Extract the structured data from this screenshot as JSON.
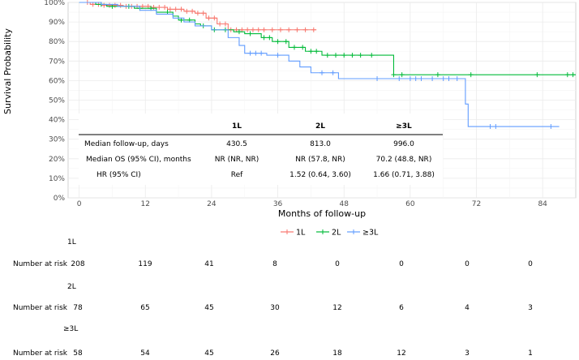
{
  "chart_data": {
    "type": "line",
    "subtype": "kaplan-meier",
    "xlabel": "Months of follow-up",
    "ylabel": "Survival Probability",
    "xlim": [
      -2,
      90
    ],
    "ylim": [
      0,
      100
    ],
    "xticks": [
      0,
      12,
      24,
      36,
      48,
      60,
      72,
      84
    ],
    "yticks": [
      0,
      10,
      20,
      30,
      40,
      50,
      60,
      70,
      80,
      90,
      100
    ],
    "ytick_labels": [
      "0%",
      "10%",
      "20%",
      "30%",
      "40%",
      "50%",
      "60%",
      "70%",
      "80%",
      "90%",
      "100%"
    ],
    "grid": true,
    "legend": {
      "position": "bottom",
      "entries": [
        {
          "label": "1L",
          "color": "#F8766D"
        },
        {
          "label": "2L",
          "color": "#00BA38"
        },
        {
          "label": "≥3L",
          "color": "#619CFF"
        }
      ]
    },
    "series": [
      {
        "name": "1L",
        "color": "#F8766D",
        "steps": [
          [
            0,
            100
          ],
          [
            2,
            99
          ],
          [
            4,
            98.5
          ],
          [
            8,
            98
          ],
          [
            13,
            97.5
          ],
          [
            16,
            96.5
          ],
          [
            19,
            95.5
          ],
          [
            21,
            94.5
          ],
          [
            23,
            92
          ],
          [
            25,
            89
          ],
          [
            27,
            86
          ]
        ],
        "censor": [
          1.5,
          2.5,
          3.5,
          4.5,
          5.5,
          6.5,
          7.5,
          8.5,
          9.5,
          10.5,
          11.5,
          12.5,
          13.5,
          14.5,
          15.5,
          16.5,
          17.5,
          18.5,
          19.5,
          20.5,
          21.5,
          22.5,
          23.5,
          24.5,
          25.5,
          26.5,
          27.5,
          28.5,
          29.5,
          30.5,
          31.5,
          32.5,
          33.5,
          35,
          36.5,
          38,
          39.5,
          41,
          42.5
        ],
        "end": 43
      },
      {
        "name": "2L",
        "color": "#00BA38",
        "steps": [
          [
            0,
            100
          ],
          [
            3,
            99
          ],
          [
            5,
            98
          ],
          [
            10,
            97
          ],
          [
            14,
            95
          ],
          [
            17,
            93
          ],
          [
            18,
            91
          ],
          [
            21,
            89
          ],
          [
            22,
            88
          ],
          [
            24,
            86
          ],
          [
            28,
            85
          ],
          [
            30,
            84
          ],
          [
            33,
            82
          ],
          [
            35,
            80
          ],
          [
            38,
            77
          ],
          [
            41,
            75
          ],
          [
            44,
            73
          ],
          [
            57,
            63
          ]
        ],
        "censor": [
          4,
          6,
          9,
          11,
          13,
          16,
          18.5,
          20,
          22.5,
          24.5,
          26.5,
          29,
          31,
          33.5,
          34.5,
          36,
          37.5,
          39,
          40.5,
          42,
          43,
          45,
          46.5,
          48,
          49.5,
          51,
          53,
          57,
          58.5,
          65,
          71,
          83,
          88.5,
          89.5
        ],
        "end": 90
      },
      {
        "name": "≥3L",
        "color": "#619CFF",
        "steps": [
          [
            0,
            100
          ],
          [
            4,
            99
          ],
          [
            7,
            98
          ],
          [
            11,
            96
          ],
          [
            14,
            94
          ],
          [
            17,
            92
          ],
          [
            19,
            90
          ],
          [
            21,
            88
          ],
          [
            24,
            86
          ],
          [
            27,
            82
          ],
          [
            29,
            78
          ],
          [
            30,
            74
          ],
          [
            34,
            73
          ],
          [
            38,
            70
          ],
          [
            40,
            67
          ],
          [
            42,
            64
          ],
          [
            47,
            61
          ],
          [
            70,
            48
          ],
          [
            70.5,
            36.5
          ]
        ],
        "censor": [
          31,
          32,
          33,
          36,
          44,
          46,
          54,
          58,
          60,
          61,
          62,
          64,
          66,
          67,
          68.5,
          74.5,
          75.5,
          85.5
        ],
        "end": 87
      }
    ],
    "table": {
      "headers": [
        "",
        "1L",
        "2L",
        "≥3L"
      ],
      "rows": [
        [
          "Median follow-up, days",
          "430.5",
          "813.0",
          "996.0"
        ],
        [
          "Median OS (95% CI), months",
          "NR (NR, NR)",
          "NR (57.8, NR)",
          "70.2 (48.8, NR)"
        ],
        [
          "HR (95% CI)",
          "Ref",
          "1.52 (0.64, 3.60)",
          "1.66 (0.71, 3.88)"
        ]
      ]
    },
    "risk_table": {
      "row_label": "Number at risk",
      "times": [
        0,
        12,
        24,
        36,
        48,
        60,
        72,
        84
      ],
      "groups": [
        {
          "name": "1L",
          "values": [
            208,
            119,
            41,
            8,
            0,
            0,
            0,
            0
          ]
        },
        {
          "name": "2L",
          "values": [
            78,
            65,
            45,
            30,
            12,
            6,
            4,
            3
          ]
        },
        {
          "name": "≥3L",
          "values": [
            58,
            54,
            45,
            26,
            18,
            12,
            3,
            1
          ]
        }
      ]
    }
  }
}
